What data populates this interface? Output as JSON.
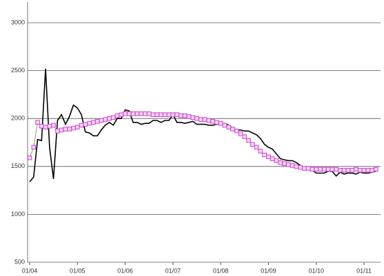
{
  "chart_data": {
    "type": "line",
    "categories": [
      "01/04",
      null,
      null,
      null,
      null,
      null,
      null,
      null,
      null,
      null,
      null,
      null,
      "01/05",
      null,
      null,
      null,
      null,
      null,
      null,
      null,
      null,
      null,
      null,
      null,
      "01/06",
      null,
      null,
      null,
      null,
      null,
      null,
      null,
      null,
      null,
      null,
      null,
      "01/07",
      null,
      null,
      null,
      null,
      null,
      null,
      null,
      null,
      null,
      null,
      null,
      "01/08",
      null,
      null,
      null,
      null,
      null,
      null,
      null,
      null,
      null,
      null,
      null,
      "01/09",
      null,
      null,
      null,
      null,
      null,
      null,
      null,
      null,
      null,
      null,
      null,
      "01/10",
      null,
      null,
      null,
      null,
      null,
      null,
      null,
      null,
      null,
      null,
      null,
      "01/11",
      null,
      null,
      null
    ],
    "series": [
      {
        "color": "#000000",
        "marker": "none",
        "values": [
          1340,
          1390,
          1780,
          1770,
          2520,
          1700,
          1370,
          1980,
          2040,
          1940,
          2020,
          2140,
          2110,
          2040,
          1860,
          1850,
          1820,
          1820,
          1880,
          1930,
          1960,
          1930,
          2000,
          2000,
          2090,
          2080,
          1960,
          1960,
          1940,
          1950,
          1950,
          1980,
          1980,
          1960,
          1980,
          1980,
          2040,
          1960,
          1960,
          1950,
          1960,
          1970,
          1940,
          1940,
          1940,
          1930,
          1930,
          1940,
          1940,
          1950,
          1930,
          1900,
          1880,
          1880,
          1870,
          1870,
          1850,
          1830,
          1790,
          1730,
          1700,
          1680,
          1630,
          1580,
          1570,
          1560,
          1560,
          1540,
          1510,
          1490,
          1470,
          1460,
          1430,
          1430,
          1430,
          1450,
          1450,
          1400,
          1440,
          1420,
          1430,
          1430,
          1420,
          1440,
          1430,
          1430,
          1440,
          1450
        ]
      },
      {
        "color": "#cc44cc",
        "marker": "square",
        "values": [
          1590,
          1700,
          1960,
          1920,
          1910,
          1920,
          1930,
          1870,
          1880,
          1890,
          1890,
          1900,
          1910,
          1930,
          1940,
          1950,
          1960,
          1970,
          1980,
          1990,
          2000,
          2010,
          2030,
          2040,
          2050,
          2050,
          2050,
          2050,
          2050,
          2050,
          2050,
          2040,
          2040,
          2040,
          2040,
          2040,
          2040,
          2040,
          2030,
          2030,
          2020,
          2010,
          2000,
          1990,
          1990,
          1980,
          1970,
          1960,
          1950,
          1930,
          1910,
          1890,
          1870,
          1840,
          1810,
          1770,
          1730,
          1700,
          1660,
          1620,
          1600,
          1580,
          1560,
          1540,
          1530,
          1520,
          1510,
          1500,
          1490,
          1480,
          1480,
          1470,
          1470,
          1470,
          1470,
          1470,
          1470,
          1470,
          1460,
          1460,
          1460,
          1460,
          1470,
          1460,
          1460,
          1460,
          1460,
          1470
        ]
      }
    ],
    "ylim": [
      500,
      3000
    ],
    "yticks": [
      500,
      1000,
      1500,
      2000,
      2500,
      3000
    ],
    "grid": true
  }
}
